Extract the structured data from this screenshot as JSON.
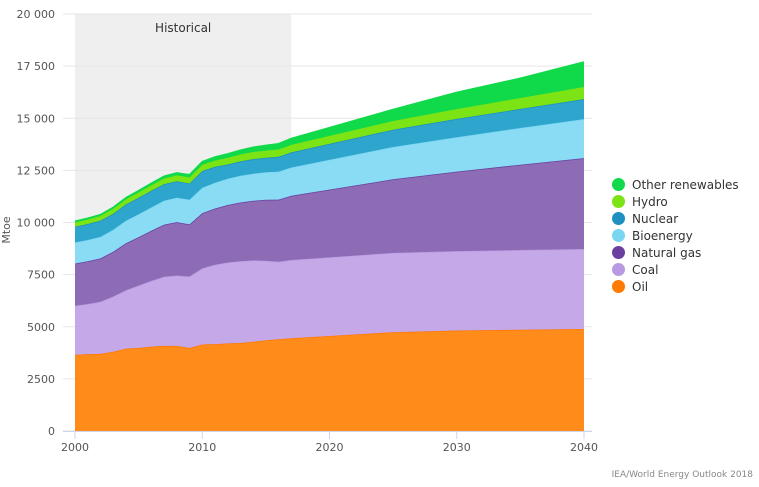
{
  "chart_data": {
    "type": "area",
    "stacked": true,
    "title": "",
    "xlabel": "",
    "ylabel": "Mtoe",
    "xlim": [
      2000,
      2040
    ],
    "ylim": [
      0,
      20000
    ],
    "x_ticks": [
      "2000",
      "2010",
      "2020",
      "2030",
      "2040"
    ],
    "y_ticks": [
      "0",
      "2500",
      "5000",
      "7500",
      "10 000",
      "12 500",
      "15 000",
      "17 500",
      "20 000"
    ],
    "y_tick_values": [
      0,
      2500,
      5000,
      7500,
      10000,
      12500,
      15000,
      17500,
      20000
    ],
    "grid": true,
    "annotation": {
      "label": "Historical",
      "x_range": [
        2000,
        2017
      ]
    },
    "legend_position": "right",
    "x": [
      2000,
      2001,
      2002,
      2003,
      2004,
      2005,
      2006,
      2007,
      2008,
      2009,
      2010,
      2011,
      2012,
      2013,
      2014,
      2015,
      2016,
      2017,
      2025,
      2030,
      2035,
      2040
    ],
    "series": [
      {
        "name": "Oil",
        "color": "#ff8c1a",
        "values": [
          3650,
          3690,
          3700,
          3800,
          3950,
          3980,
          4050,
          4080,
          4080,
          3980,
          4150,
          4170,
          4200,
          4220,
          4280,
          4350,
          4400,
          4450,
          4740,
          4820,
          4860,
          4890
        ]
      },
      {
        "name": "Coal",
        "color": "#c5a8e8",
        "values": [
          2360,
          2400,
          2500,
          2650,
          2800,
          3000,
          3150,
          3320,
          3380,
          3430,
          3650,
          3800,
          3880,
          3920,
          3900,
          3820,
          3720,
          3750,
          3800,
          3810,
          3820,
          3840
        ]
      },
      {
        "name": "Natural gas",
        "color": "#8d6bb5",
        "values": [
          2020,
          2050,
          2080,
          2150,
          2250,
          2320,
          2400,
          2500,
          2560,
          2500,
          2650,
          2700,
          2760,
          2820,
          2860,
          2920,
          2980,
          3080,
          3530,
          3810,
          4090,
          4360
        ]
      },
      {
        "name": "Bioenergy",
        "color": "#8adcf5",
        "values": [
          1010,
          1020,
          1030,
          1050,
          1080,
          1100,
          1120,
          1150,
          1170,
          1180,
          1220,
          1240,
          1260,
          1280,
          1300,
          1320,
          1340,
          1360,
          1550,
          1650,
          1760,
          1870
        ]
      },
      {
        "name": "Nuclear",
        "color": "#2ea5cc",
        "values": [
          760,
          770,
          780,
          770,
          790,
          790,
          800,
          790,
          790,
          780,
          800,
          760,
          680,
          690,
          700,
          700,
          710,
          720,
          830,
          880,
          920,
          960
        ]
      },
      {
        "name": "Hydro",
        "color": "#7ce314",
        "values": [
          200,
          210,
          220,
          230,
          240,
          250,
          260,
          270,
          280,
          290,
          300,
          300,
          320,
          330,
          340,
          340,
          350,
          360,
          420,
          470,
          520,
          580
        ]
      },
      {
        "name": "Other renewables",
        "color": "#10d94a",
        "values": [
          60,
          65,
          70,
          75,
          80,
          90,
          100,
          110,
          120,
          130,
          150,
          170,
          190,
          210,
          230,
          250,
          280,
          310,
          550,
          800,
          950,
          1200
        ]
      }
    ]
  },
  "legend": [
    {
      "label": "Other renewables",
      "color": "#10d94a"
    },
    {
      "label": "Hydro",
      "color": "#7ce314"
    },
    {
      "label": "Nuclear",
      "color": "#1e8fbf"
    },
    {
      "label": "Bioenergy",
      "color": "#7bd6f2"
    },
    {
      "label": "Natural gas",
      "color": "#6a3fa0"
    },
    {
      "label": "Coal",
      "color": "#b99ae2"
    },
    {
      "label": "Oil",
      "color": "#ff7a00"
    }
  ],
  "credit": "IEA/World Energy Outlook 2018"
}
